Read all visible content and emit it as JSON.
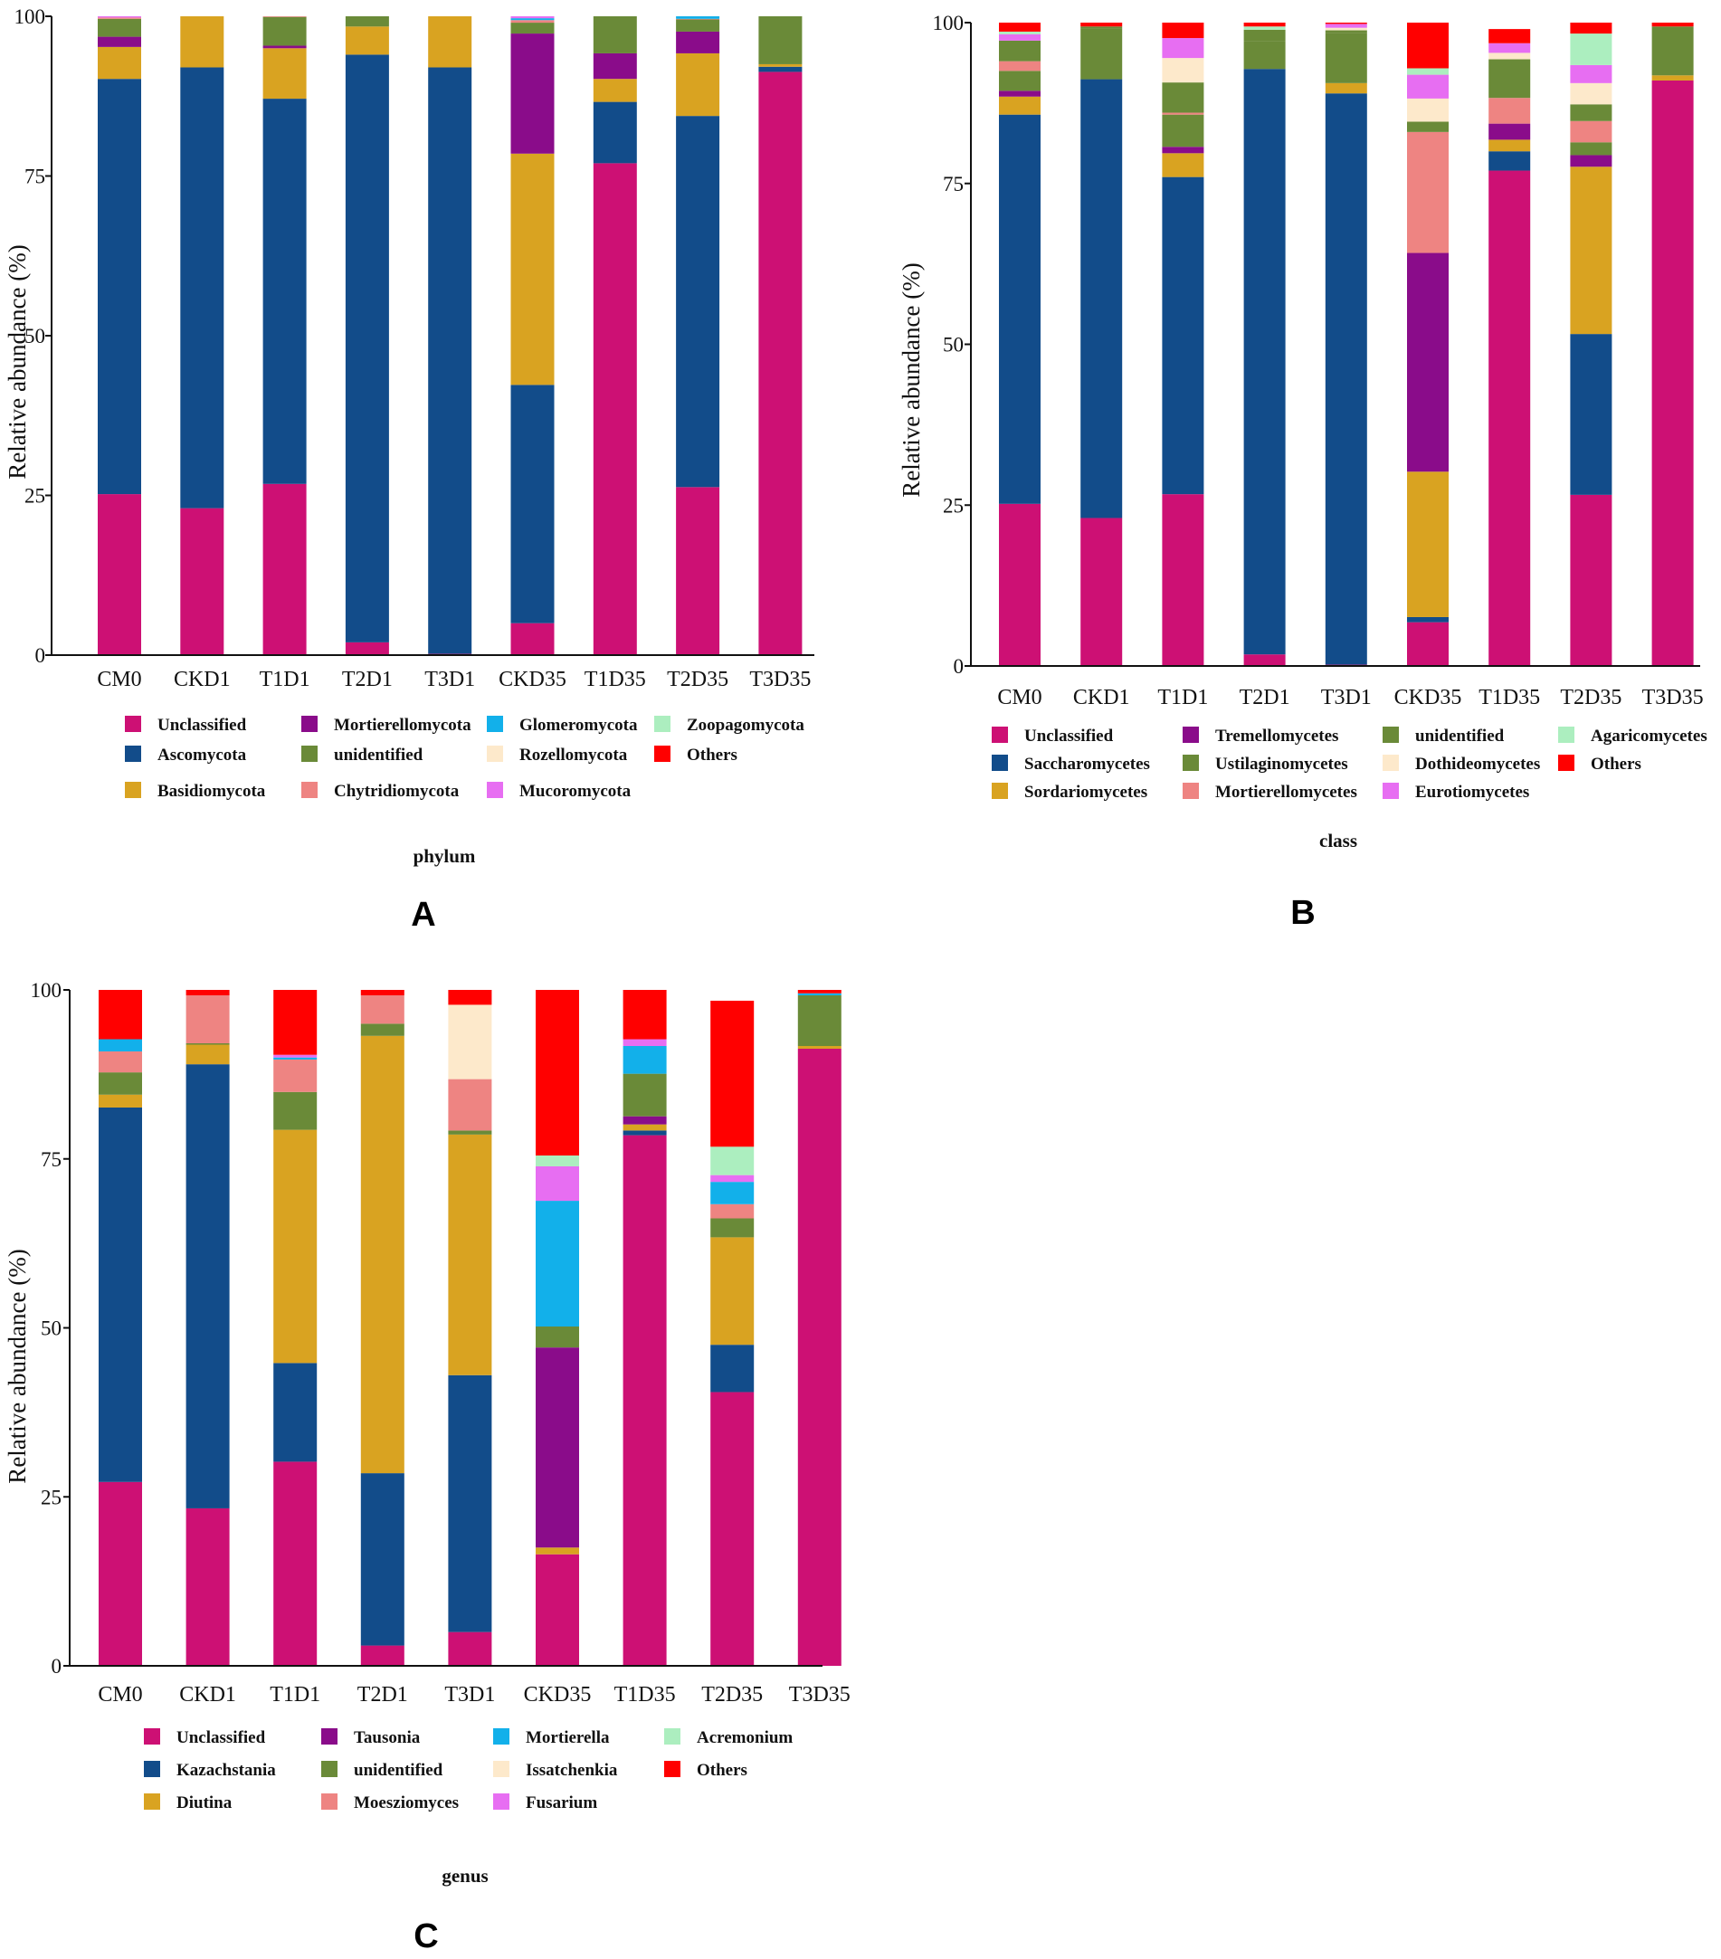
{
  "colors": {
    "Unclassified": "#cd1074",
    "Ascomycota": "#124c8a",
    "Basidiomycota": "#d9a321",
    "Mortierellomycota": "#8a0c8a",
    "unidentified": "#6a8a38",
    "Chytridiomycota": "#ee8482",
    "Glomeromycota": "#12b0ea",
    "Rozellomycota": "#fde9cb",
    "Mucoromycota": "#e76ef2",
    "Zoopagomycota": "#aceebf",
    "Others": "#ff0000",
    "Saccharomycetes": "#124c8a",
    "Sordariomycetes": "#d9a321",
    "Tremellomycetes": "#8a0c8a",
    "Ustilaginomycetes": "#6a8a38",
    "Mortierellomycetes": "#ee8482",
    "Dothideomycetes": "#fde9cb",
    "Eurotiomycetes": "#e76ef2",
    "Agaricomycetes": "#aceebf",
    "Kazachstania": "#124c8a",
    "Diutina": "#d9a321",
    "Tausonia": "#8a0c8a",
    "Moesziomyces": "#ee8482",
    "Mortierella": "#12b0ea",
    "Issatchenkia": "#fde9cb",
    "Fusarium": "#e76ef2",
    "Acremonium": "#aceebf"
  },
  "chart_data": [
    {
      "id": "A",
      "type": "bar",
      "stacked": true,
      "panel_label": "A",
      "xlabel": "phylum",
      "ylabel": "Relative abundance (%)",
      "ylim": [
        0,
        100
      ],
      "yticks": [
        "0",
        "25",
        "50",
        "75",
        "100"
      ],
      "categories": [
        "CM0",
        "CKD1",
        "T1D1",
        "T2D1",
        "T3D1",
        "CKD35",
        "T1D35",
        "T2D35",
        "T3D35"
      ],
      "legend": [
        "Unclassified",
        "Mortierellomycota",
        "Glomeromycota",
        "Zoopagomycota",
        "Ascomycota",
        "unidentified",
        "Rozellomycota",
        "Others",
        "Basidiomycota",
        "Chytridiomycota",
        "Mucoromycota"
      ],
      "series": [
        {
          "name": "Unclassified",
          "values": [
            25.2,
            23.0,
            26.8,
            2.0,
            0.2,
            5.0,
            77.0,
            26.3,
            91.3
          ]
        },
        {
          "name": "Ascomycota",
          "values": [
            65.0,
            69.0,
            60.3,
            92.0,
            91.8,
            37.3,
            9.6,
            58.1,
            0.8
          ]
        },
        {
          "name": "Basidiomycota",
          "values": [
            5.0,
            8.0,
            7.9,
            4.4,
            8.0,
            36.2,
            3.6,
            9.8,
            0.4
          ]
        },
        {
          "name": "Mortierellomycota",
          "values": [
            1.6,
            0.0,
            0.4,
            0.0,
            0.0,
            18.8,
            4.0,
            3.4,
            0.0
          ]
        },
        {
          "name": "unidentified",
          "values": [
            2.8,
            0.0,
            4.5,
            1.6,
            0.0,
            1.7,
            5.8,
            1.9,
            7.5
          ]
        },
        {
          "name": "Chytridiomycota",
          "values": [
            0.2,
            0.0,
            0.1,
            0.0,
            0.0,
            0.4,
            0.0,
            0.1,
            0.0
          ]
        },
        {
          "name": "Glomeromycota",
          "values": [
            0.0,
            0.0,
            0.0,
            0.0,
            0.0,
            0.3,
            0.0,
            0.4,
            0.0
          ]
        },
        {
          "name": "Rozellomycota",
          "values": [
            0.0,
            0.0,
            0.0,
            0.0,
            0.0,
            0.0,
            0.0,
            0.0,
            0.0
          ]
        },
        {
          "name": "Mucoromycota",
          "values": [
            0.2,
            0.0,
            0.0,
            0.0,
            0.0,
            0.3,
            0.0,
            0.0,
            0.0
          ]
        },
        {
          "name": "Zoopagomycota",
          "values": [
            0.0,
            0.0,
            0.0,
            0.0,
            0.0,
            0.0,
            0.0,
            0.0,
            0.0
          ]
        },
        {
          "name": "Others",
          "values": [
            0.0,
            0.0,
            0.0,
            0.0,
            0.0,
            0.0,
            0.0,
            0.0,
            0.0
          ]
        }
      ]
    },
    {
      "id": "B",
      "type": "bar",
      "stacked": true,
      "panel_label": "B",
      "xlabel": "class",
      "ylabel": "Relative abundance (%)",
      "ylim": [
        0,
        100
      ],
      "yticks": [
        "0",
        "25",
        "50",
        "75",
        "100"
      ],
      "categories": [
        "CM0",
        "CKD1",
        "T1D1",
        "T2D1",
        "T3D1",
        "CKD35",
        "T1D35",
        "T2D35",
        "T3D35"
      ],
      "legend": [
        "Unclassified",
        "Tremellomycetes",
        "unidentified",
        "Agaricomycetes",
        "Saccharomycetes",
        "Ustilaginomycetes",
        "Dothideomycetes",
        "Others",
        "Sordariomycetes",
        "Mortierellomycetes",
        "Eurotiomycetes"
      ],
      "series": [
        {
          "name": "Unclassified",
          "values": [
            25.2,
            23.0,
            26.7,
            1.8,
            0.2,
            6.8,
            77.0,
            26.6,
            91.0
          ]
        },
        {
          "name": "Saccharomycetes",
          "values": [
            60.5,
            68.2,
            49.3,
            91.0,
            88.8,
            0.8,
            3.0,
            25.0,
            0.0
          ]
        },
        {
          "name": "Sordariomycetes",
          "values": [
            2.8,
            0.0,
            3.7,
            0.0,
            1.6,
            22.6,
            1.8,
            26.0,
            0.8
          ]
        },
        {
          "name": "Tremellomycetes",
          "values": [
            0.9,
            0.0,
            1.0,
            0.0,
            0.0,
            34.0,
            2.5,
            1.8,
            0.0
          ]
        },
        {
          "name": "Ustilaginomycetes",
          "values": [
            3.1,
            7.9,
            5.0,
            4.3,
            7.8,
            0.0,
            0.0,
            2.0,
            0.0
          ]
        },
        {
          "name": "Mortierellomycetes",
          "values": [
            1.5,
            0.0,
            0.3,
            0.0,
            0.0,
            18.8,
            4.0,
            3.3,
            0.0
          ]
        },
        {
          "name": "unidentified",
          "values": [
            3.2,
            0.3,
            4.7,
            1.8,
            0.4,
            1.6,
            6.0,
            2.6,
            7.6
          ]
        },
        {
          "name": "Dothideomycetes",
          "values": [
            0.0,
            0.0,
            3.8,
            0.0,
            0.4,
            3.6,
            1.0,
            3.3,
            0.0
          ]
        },
        {
          "name": "Eurotiomycetes",
          "values": [
            1.0,
            0.0,
            3.1,
            0.0,
            0.6,
            3.7,
            1.5,
            2.8,
            0.0
          ]
        },
        {
          "name": "Agaricomycetes",
          "values": [
            0.4,
            0.0,
            0.0,
            0.5,
            0.0,
            1.0,
            0.0,
            4.9,
            0.0
          ]
        },
        {
          "name": "Others",
          "values": [
            1.4,
            0.6,
            2.4,
            0.6,
            0.2,
            7.1,
            2.2,
            1.7,
            0.6
          ]
        }
      ]
    },
    {
      "id": "C",
      "type": "bar",
      "stacked": true,
      "panel_label": "C",
      "xlabel": "genus",
      "ylabel": "Relative abundance (%)",
      "ylim": [
        0,
        100
      ],
      "yticks": [
        "0",
        "25",
        "50",
        "75",
        "100"
      ],
      "categories": [
        "CM0",
        "CKD1",
        "T1D1",
        "T2D1",
        "T3D1",
        "CKD35",
        "T1D35",
        "T2D35",
        "T3D35"
      ],
      "legend": [
        "Unclassified",
        "Tausonia",
        "Mortierella",
        "Acremonium",
        "Kazachstania",
        "unidentified",
        "Issatchenkia",
        "Others",
        "Diutina",
        "Moesziomyces",
        "Fusarium"
      ],
      "series": [
        {
          "name": "Unclassified",
          "values": [
            27.2,
            23.3,
            30.2,
            3.0,
            5.0,
            16.5,
            78.5,
            40.5,
            91.3
          ]
        },
        {
          "name": "Kazachstania",
          "values": [
            55.4,
            65.7,
            14.6,
            25.5,
            38.0,
            0.0,
            0.7,
            7.0,
            0.0
          ]
        },
        {
          "name": "Diutina",
          "values": [
            1.9,
            2.9,
            34.5,
            64.7,
            35.6,
            1.0,
            0.9,
            15.9,
            0.4
          ]
        },
        {
          "name": "Tausonia",
          "values": [
            0.0,
            0.0,
            0.0,
            0.0,
            0.0,
            29.6,
            1.2,
            0.0,
            0.0
          ]
        },
        {
          "name": "unidentified",
          "values": [
            3.3,
            0.2,
            5.6,
            1.8,
            0.6,
            3.1,
            6.3,
            2.8,
            7.5
          ]
        },
        {
          "name": "Moesziomyces",
          "values": [
            3.1,
            7.1,
            4.8,
            4.2,
            7.6,
            0.0,
            0.0,
            2.1,
            0.0
          ]
        },
        {
          "name": "Mortierella",
          "values": [
            1.8,
            0.0,
            0.3,
            0.0,
            0.0,
            18.6,
            4.1,
            3.3,
            0.3
          ]
        },
        {
          "name": "Issatchenkia",
          "values": [
            0.0,
            0.0,
            0.0,
            0.0,
            11.0,
            0.0,
            0.0,
            0.0,
            0.0
          ]
        },
        {
          "name": "Fusarium",
          "values": [
            0.0,
            0.0,
            0.4,
            0.0,
            0.0,
            5.1,
            1.0,
            1.0,
            0.0
          ]
        },
        {
          "name": "Acremonium",
          "values": [
            0.0,
            0.0,
            0.0,
            0.0,
            0.0,
            1.6,
            0.0,
            4.2,
            0.0
          ]
        },
        {
          "name": "Others",
          "values": [
            7.3,
            0.8,
            9.6,
            0.8,
            2.2,
            24.5,
            7.3,
            21.6,
            0.5
          ]
        }
      ]
    }
  ]
}
